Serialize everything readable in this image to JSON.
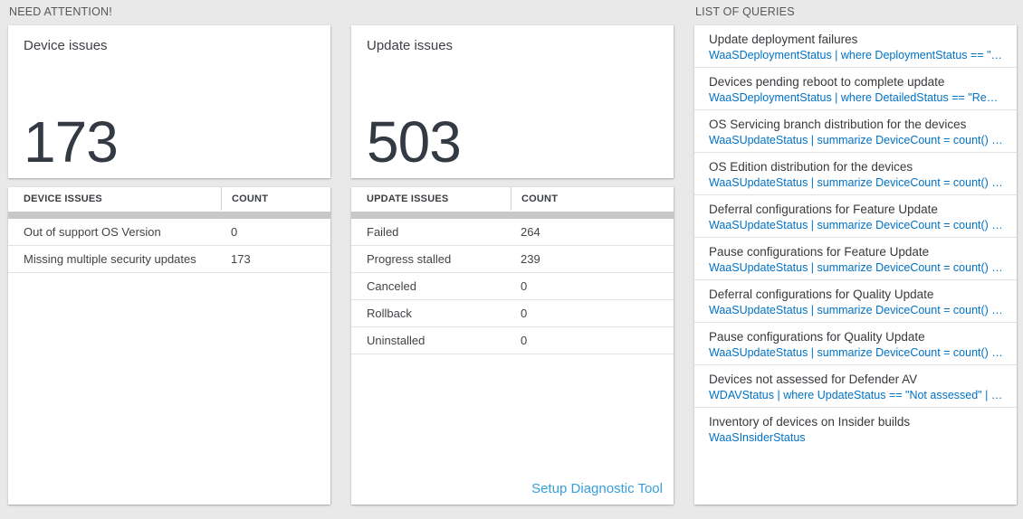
{
  "header": {
    "attention": "NEED ATTENTION!",
    "queries": "LIST OF QUERIES"
  },
  "device_panel": {
    "tile_title": "Device issues",
    "tile_value": "173",
    "table": {
      "columns": [
        "DEVICE ISSUES",
        "COUNT"
      ],
      "rows": [
        {
          "label": "Out of support OS Version",
          "count": "0"
        },
        {
          "label": "Missing multiple security updates",
          "count": "173"
        }
      ]
    }
  },
  "update_panel": {
    "tile_title": "Update issues",
    "tile_value": "503",
    "table": {
      "columns": [
        "UPDATE ISSUES",
        "COUNT"
      ],
      "rows": [
        {
          "label": "Failed",
          "count": "264"
        },
        {
          "label": "Progress stalled",
          "count": "239"
        },
        {
          "label": "Canceled",
          "count": "0"
        },
        {
          "label": "Rollback",
          "count": "0"
        },
        {
          "label": "Uninstalled",
          "count": "0"
        }
      ]
    },
    "setup_link": "Setup Diagnostic Tool"
  },
  "queries_panel": {
    "items": [
      {
        "title": "Update deployment failures",
        "query": "WaaSDeploymentStatus | where DeploymentStatus == \"Failed\" |..."
      },
      {
        "title": "Devices pending reboot to complete update",
        "query": "WaaSDeploymentStatus | where DetailedStatus == \"Reboot pend..."
      },
      {
        "title": "OS Servicing branch distribution for the devices",
        "query": "WaaSUpdateStatus | summarize DeviceCount = count() by OSSer..."
      },
      {
        "title": "OS Edition distribution for the devices",
        "query": "WaaSUpdateStatus | summarize DeviceCount = count() by OSEdit..."
      },
      {
        "title": "Deferral configurations for Feature Update",
        "query": "WaaSUpdateStatus | summarize DeviceCount = count() by Featur..."
      },
      {
        "title": "Pause configurations for Feature Update",
        "query": "WaaSUpdateStatus | summarize DeviceCount = count() by Featur..."
      },
      {
        "title": "Deferral configurations for Quality Update",
        "query": "WaaSUpdateStatus | summarize DeviceCount = count() by Qualit..."
      },
      {
        "title": "Pause configurations for Quality Update",
        "query": "WaaSUpdateStatus | summarize DeviceCount = count() by Qualit..."
      },
      {
        "title": "Devices not assessed for Defender AV",
        "query": "WDAVStatus | where UpdateStatus == \"Not assessed\" | render ta..."
      },
      {
        "title": "Inventory of devices on Insider builds",
        "query": "WaaSInsiderStatus"
      }
    ]
  },
  "colors": {
    "query_link_blue": "#0072c6",
    "action_link_blue": "#35a0da",
    "scrollbar_gray": "#c8c8c8"
  }
}
